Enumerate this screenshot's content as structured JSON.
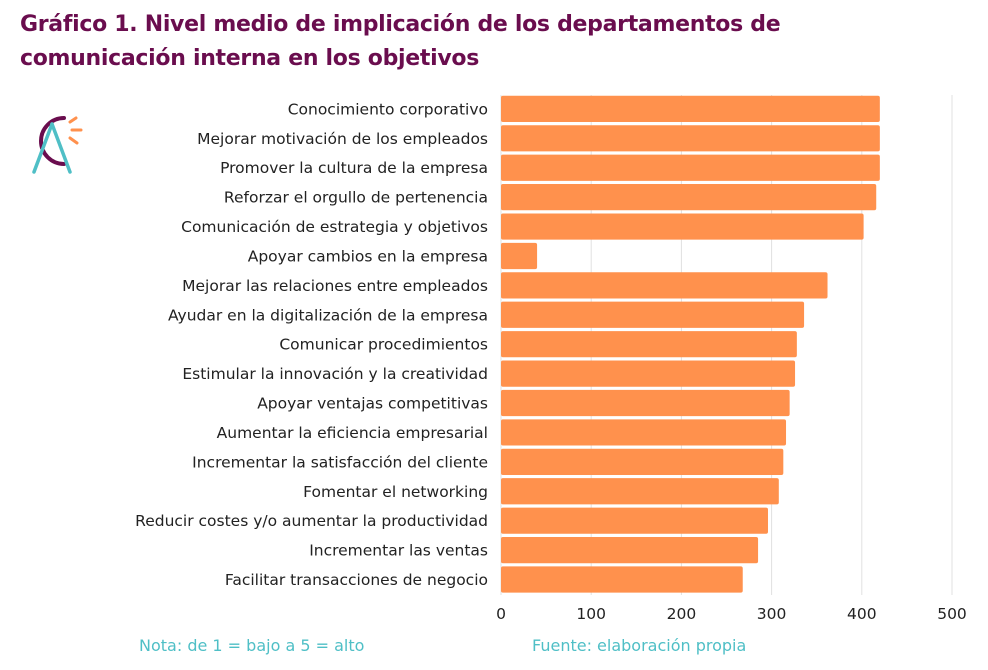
{
  "title_line1": "Gráfico 1. Nivel medio de implicación de los departamentos de",
  "title_line2": "comunicación interna en los objetivos",
  "logo": "ca-logo-icon",
  "note": "Nota: de 1 = bajo a 5 = alto",
  "source": "Fuente: elaboración propia",
  "colors": {
    "bar": "#ff914d",
    "title": "#6a0d4e",
    "footnote": "#4fbfc6",
    "grid": "#e0e0e0"
  },
  "chart_data": {
    "type": "bar",
    "orientation": "horizontal",
    "title": "Gráfico 1. Nivel medio de implicación de los departamentos de comunicación interna en los objetivos",
    "xlabel": "",
    "ylabel": "",
    "xlim": [
      0,
      500
    ],
    "xticks": [
      0,
      100,
      200,
      300,
      400,
      500
    ],
    "grid": true,
    "legend": "none",
    "categories": [
      "Conocimiento corporativo",
      "Mejorar motivación de los empleados",
      "Promover la cultura de la empresa",
      "Reforzar el orgullo de pertenencia",
      "Comunicación de estrategia y objetivos",
      "Apoyar cambios en la empresa",
      "Mejorar las relaciones entre empleados",
      "Ayudar en la digitalización de la empresa",
      "Comunicar procedimientos",
      "Estimular la innovación y la creatividad",
      "Apoyar ventajas competitivas",
      "Aumentar la eficiencia empresarial",
      "Incrementar la satisfacción del cliente",
      "Fomentar el networking",
      "Reducir costes y/o aumentar la productividad",
      "Incrementar las ventas",
      "Facilitar transacciones de negocio"
    ],
    "values": [
      420,
      420,
      420,
      416,
      402,
      40,
      362,
      336,
      328,
      326,
      320,
      316,
      313,
      308,
      296,
      285,
      268
    ]
  }
}
